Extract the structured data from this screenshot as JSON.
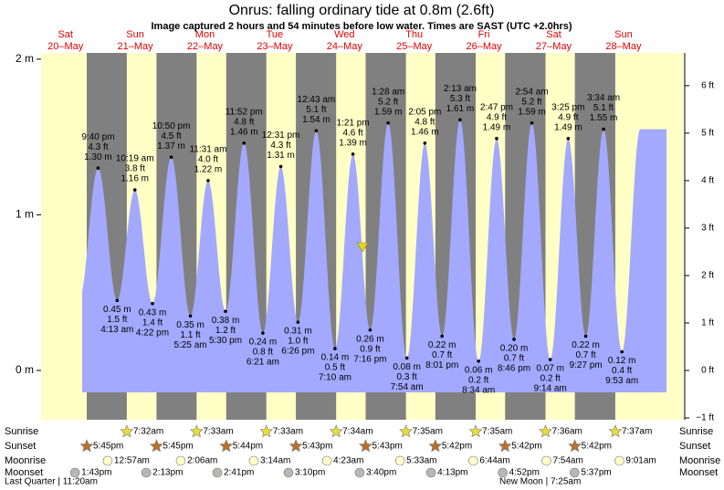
{
  "chart_data": {
    "type": "tide",
    "title": "Onrus: falling  ordinary tide at 0.8m (2.6ft)",
    "subtitle": "Image captured 2 hours and 54 minutes before low water. Times are SAST (UTC +2.0hrs)",
    "days": [
      {
        "name": "Sat",
        "date": "20–May"
      },
      {
        "name": "Sun",
        "date": "21–May"
      },
      {
        "name": "Mon",
        "date": "22–May"
      },
      {
        "name": "Tue",
        "date": "23–May"
      },
      {
        "name": "Wed",
        "date": "24–May"
      },
      {
        "name": "Thu",
        "date": "25–May"
      },
      {
        "name": "Fri",
        "date": "26–May"
      },
      {
        "name": "Sat",
        "date": "27–May"
      },
      {
        "name": "Sun",
        "date": "28–May"
      }
    ],
    "tides": {
      "times": [
        "9:40 pm",
        "4:13 am",
        "10:19 am",
        "4:22 pm",
        "10:50 pm",
        "5:25 am",
        "11:31 am",
        "5:30 pm",
        "11:52 pm",
        "6:21 am",
        "12:31 pm",
        "6:26 pm",
        "12:43 am",
        "7:10 am",
        "1:21 pm",
        "7:16 pm",
        "1:28 am",
        "7:54 am",
        "2:05 pm",
        "8:01 pm",
        "2:13 am",
        "8:34 am",
        "2:47 pm",
        "8:46 pm",
        "2:54 am",
        "9:14 am",
        "3:25 pm",
        "9:27 pm",
        "3:34 am",
        "9:53 am"
      ],
      "values": [
        1.3,
        0.45,
        1.16,
        0.43,
        1.37,
        0.35,
        1.22,
        0.38,
        1.46,
        0.24,
        1.31,
        0.31,
        1.54,
        0.14,
        1.39,
        0.26,
        1.59,
        0.08,
        1.46,
        0.22,
        1.61,
        0.06,
        1.49,
        0.2,
        1.59,
        0.07,
        1.49,
        0.22,
        1.55,
        0.12
      ],
      "value_labels": [
        "1.30 m",
        "0.45 m",
        "1.16 m",
        "0.43 m",
        "1.37 m",
        "0.35 m",
        "1.22 m",
        "0.38 m",
        "1.46 m",
        "0.24 m",
        "1.31 m",
        "0.31 m",
        "1.54 m",
        "0.14 m",
        "1.39 m",
        "0.26 m",
        "1.59 m",
        "0.08 m",
        "1.46 m",
        "0.22 m",
        "1.61 m",
        "0.06 m",
        "1.49 m",
        "0.20 m",
        "1.59 m",
        "0.07 m",
        "1.49 m",
        "0.22 m",
        "1.55 m",
        "0.12 m"
      ],
      "ft_labels": [
        "4.3 ft",
        "1.5 ft",
        "3.8 ft",
        "1.4 ft",
        "4.5 ft",
        "1.1 ft",
        "4.0 ft",
        "1.2 ft",
        "4.8 ft",
        "0.8 ft",
        "4.3 ft",
        "1.0 ft",
        "5.1 ft",
        "0.5 ft",
        "4.6 ft",
        "0.9 ft",
        "5.2 ft",
        "0.3 ft",
        "4.8 ft",
        "0.7 ft",
        "5.3 ft",
        "0.2 ft",
        "4.9 ft",
        "0.7 ft",
        "5.2 ft",
        "0.2 ft",
        "4.9 ft",
        "0.7 ft",
        "5.1 ft",
        "0.4 ft"
      ]
    },
    "ylim": [
      -0.305,
      2.04
    ],
    "yticks": [
      {
        "value": 0,
        "label": "0 m"
      },
      {
        "value": 1,
        "label": "1 m"
      },
      {
        "value": 2,
        "label": "2 m"
      }
    ],
    "y2lim": [
      -1.0,
      6.69
    ],
    "y2ticks": [
      {
        "value": -1,
        "label": "−1 ft"
      },
      {
        "value": 0,
        "label": "0 ft"
      },
      {
        "value": 1,
        "label": "1 ft"
      },
      {
        "value": 2,
        "label": "2 ft"
      },
      {
        "value": 3,
        "label": "3 ft"
      },
      {
        "value": 4,
        "label": "4 ft"
      },
      {
        "value": 5,
        "label": "5 ft"
      },
      {
        "value": 6,
        "label": "6 ft"
      }
    ],
    "rows": [
      {
        "name": "Sunrise",
        "icon": "sunrise",
        "times": [
          null,
          "7:32am",
          "7:33am",
          "7:33am",
          "7:34am",
          "7:35am",
          "7:35am",
          "7:36am",
          "7:37am"
        ]
      },
      {
        "name": "Sunset",
        "icon": "sunset",
        "times": [
          "5:45pm",
          "5:45pm",
          "5:44pm",
          "5:43pm",
          "5:43pm",
          "5:42pm",
          "5:42pm",
          "5:42pm",
          null
        ]
      },
      {
        "name": "Moonrise",
        "icon": "moonrise",
        "times": [
          null,
          "12:57am",
          "2:06am",
          "3:14am",
          "4:23am",
          "5:33am",
          "6:44am",
          "7:54am",
          "9:01am"
        ]
      },
      {
        "name": "Moonset",
        "icon": "moonset",
        "times": [
          "1:43pm",
          "2:13pm",
          "2:41pm",
          "3:10pm",
          "3:40pm",
          "4:13pm",
          "4:52pm",
          "5:37pm",
          null
        ]
      }
    ],
    "moon_phases": [
      "Last Quarter | 11:20am",
      "New Moon | 7:25am"
    ]
  }
}
